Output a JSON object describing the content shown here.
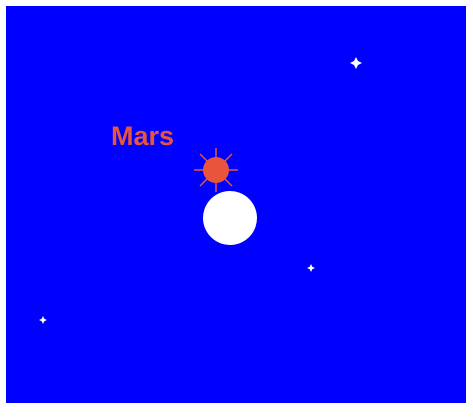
{
  "labels": {
    "mars": "Mars"
  }
}
